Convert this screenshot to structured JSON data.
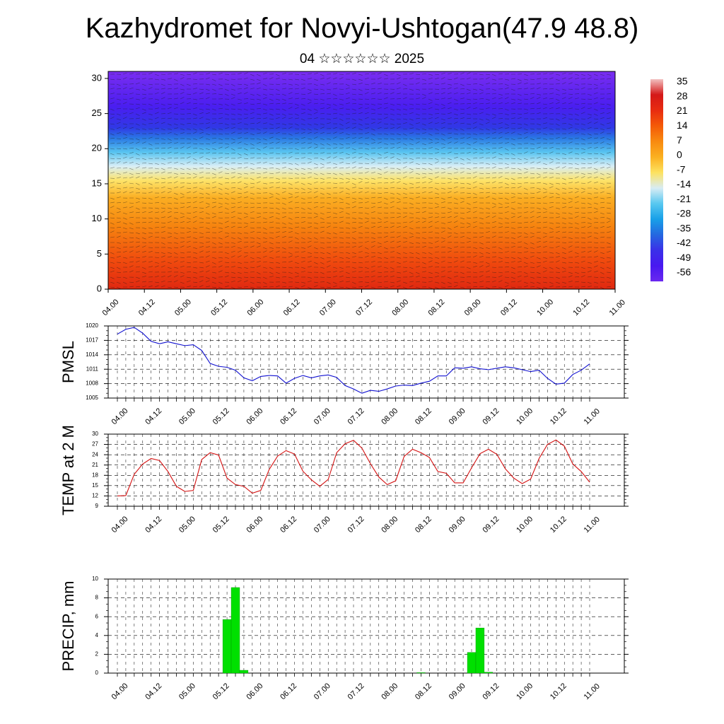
{
  "title": "Kazhydromet for Novyi-Ushtogan(47.9 48.8)",
  "subtitle": "04 ☆☆☆☆☆☆ 2025",
  "chart_data": [
    {
      "type": "heatmap",
      "title": "",
      "xlabel": "",
      "ylabel": "",
      "x_tick_labels": [
        "04.00",
        "04.12",
        "05.00",
        "05.12",
        "06.00",
        "06.12",
        "07.00",
        "07.12",
        "08.00",
        "08.12",
        "09.00",
        "09.12",
        "10.00",
        "10.12",
        "11.00"
      ],
      "y_ticks": [
        0,
        5,
        10,
        15,
        20,
        25,
        30
      ],
      "ylim": [
        0,
        31
      ],
      "colorbar": {
        "labels": [
          "35",
          "28",
          "21",
          "14",
          "7",
          "0",
          "-7",
          "-14",
          "-21",
          "-28",
          "-35",
          "-42",
          "-49",
          "-56"
        ],
        "colors": [
          "#f2c0c0",
          "#d41818",
          "#e82c10",
          "#f45a08",
          "#f88a10",
          "#fbb020",
          "#fde260",
          "#d8ecf4",
          "#58c8f0",
          "#18a0e8",
          "#2468e0",
          "#3a30e8",
          "#4818f0",
          "#6a28f0"
        ]
      },
      "profile_colors": [
        {
          "level": 0,
          "color": "#e02810"
        },
        {
          "level": 4,
          "color": "#f04a0e"
        },
        {
          "level": 9,
          "color": "#f6840f"
        },
        {
          "level": 13,
          "color": "#fbae22"
        },
        {
          "level": 15.5,
          "color": "#fde46a"
        },
        {
          "level": 17.5,
          "color": "#d8eef6"
        },
        {
          "level": 19.5,
          "color": "#58c4f0"
        },
        {
          "level": 21.5,
          "color": "#2a78e4"
        },
        {
          "level": 23,
          "color": "#3038e6"
        },
        {
          "level": 26,
          "color": "#4a1ef0"
        },
        {
          "level": 31,
          "color": "#7a2ef0"
        }
      ],
      "grid": false,
      "legend": "right"
    },
    {
      "type": "line",
      "title": "",
      "ylabel": "PMSL",
      "x_tick_labels": [
        "04.00",
        "04.12",
        "05.00",
        "05.12",
        "06.00",
        "06.12",
        "07.00",
        "07.12",
        "08.00",
        "08.12",
        "09.00",
        "09.12",
        "10.00",
        "10.12",
        "11.00"
      ],
      "y_ticks": [
        1005,
        1008,
        1011,
        1014,
        1017,
        1020
      ],
      "ylim": [
        1005,
        1020
      ],
      "color": "#1010d0",
      "values": [
        1018.3,
        1019.3,
        1019.7,
        1018.5,
        1016.8,
        1016.3,
        1016.7,
        1016.3,
        1015.9,
        1016.1,
        1014.9,
        1012.2,
        1011.6,
        1011.4,
        1010.8,
        1009.2,
        1008.6,
        1009.5,
        1009.7,
        1009.6,
        1008.1,
        1009.1,
        1009.7,
        1009.2,
        1009.6,
        1009.8,
        1009.3,
        1007.6,
        1006.9,
        1006.0,
        1006.6,
        1006.4,
        1006.9,
        1007.5,
        1007.7,
        1007.6,
        1008.1,
        1008.5,
        1009.6,
        1009.6,
        1011.3,
        1011.2,
        1011.5,
        1011.1,
        1010.9,
        1011.2,
        1011.5,
        1011.3,
        1010.9,
        1010.5,
        1010.8,
        1009.1,
        1007.9,
        1008.1,
        1009.9,
        1010.8,
        1012.1
      ]
    },
    {
      "type": "line",
      "title": "",
      "ylabel": "TEMP at 2 M",
      "x_tick_labels": [
        "04.00",
        "04.12",
        "05.00",
        "05.12",
        "06.00",
        "06.12",
        "07.00",
        "07.12",
        "08.00",
        "08.12",
        "09.00",
        "09.12",
        "10.00",
        "10.12",
        "11.00"
      ],
      "y_ticks": [
        9,
        12,
        15,
        18,
        21,
        24,
        27,
        30
      ],
      "ylim": [
        9,
        30
      ],
      "color": "#d41010",
      "values": [
        12.0,
        12.1,
        18.3,
        21.3,
        22.9,
        22.3,
        19.1,
        14.8,
        13.3,
        13.6,
        22.6,
        24.6,
        23.9,
        17.2,
        15.3,
        14.8,
        12.8,
        13.6,
        19.7,
        23.6,
        25.2,
        24.2,
        19.2,
        16.7,
        14.8,
        16.8,
        24.6,
        27.2,
        28.2,
        25.9,
        21.4,
        17.5,
        15.3,
        16.4,
        23.5,
        25.6,
        24.6,
        23.2,
        19.1,
        18.6,
        15.8,
        15.8,
        20.2,
        24.3,
        25.6,
        24.1,
        19.9,
        17.2,
        15.6,
        16.9,
        22.9,
        27.0,
        28.3,
        26.5,
        21.3,
        19.1,
        16.0
      ]
    },
    {
      "type": "bar",
      "title": "",
      "ylabel": "PRECIP, mm",
      "x_tick_labels": [
        "04.00",
        "04.12",
        "05.00",
        "05.12",
        "06.00",
        "06.12",
        "07.00",
        "07.12",
        "08.00",
        "08.12",
        "09.00",
        "09.12",
        "10.00",
        "10.12",
        "11.00"
      ],
      "y_ticks": [
        0,
        2,
        4,
        6,
        8,
        10
      ],
      "ylim": [
        0,
        10
      ],
      "color": "#00e000",
      "values": [
        0,
        0,
        0,
        0,
        0,
        0,
        0,
        0,
        0,
        0,
        0,
        0,
        0,
        5.7,
        9.1,
        0.3,
        0,
        0,
        0,
        0,
        0,
        0,
        0,
        0,
        0,
        0,
        0,
        0,
        0,
        0,
        0,
        0,
        0,
        0,
        0,
        0,
        0.05,
        0,
        0,
        0,
        0,
        0,
        2.2,
        4.8,
        0.1,
        0,
        0,
        0,
        0,
        0,
        0,
        0,
        0,
        0,
        0,
        0,
        0
      ]
    }
  ]
}
